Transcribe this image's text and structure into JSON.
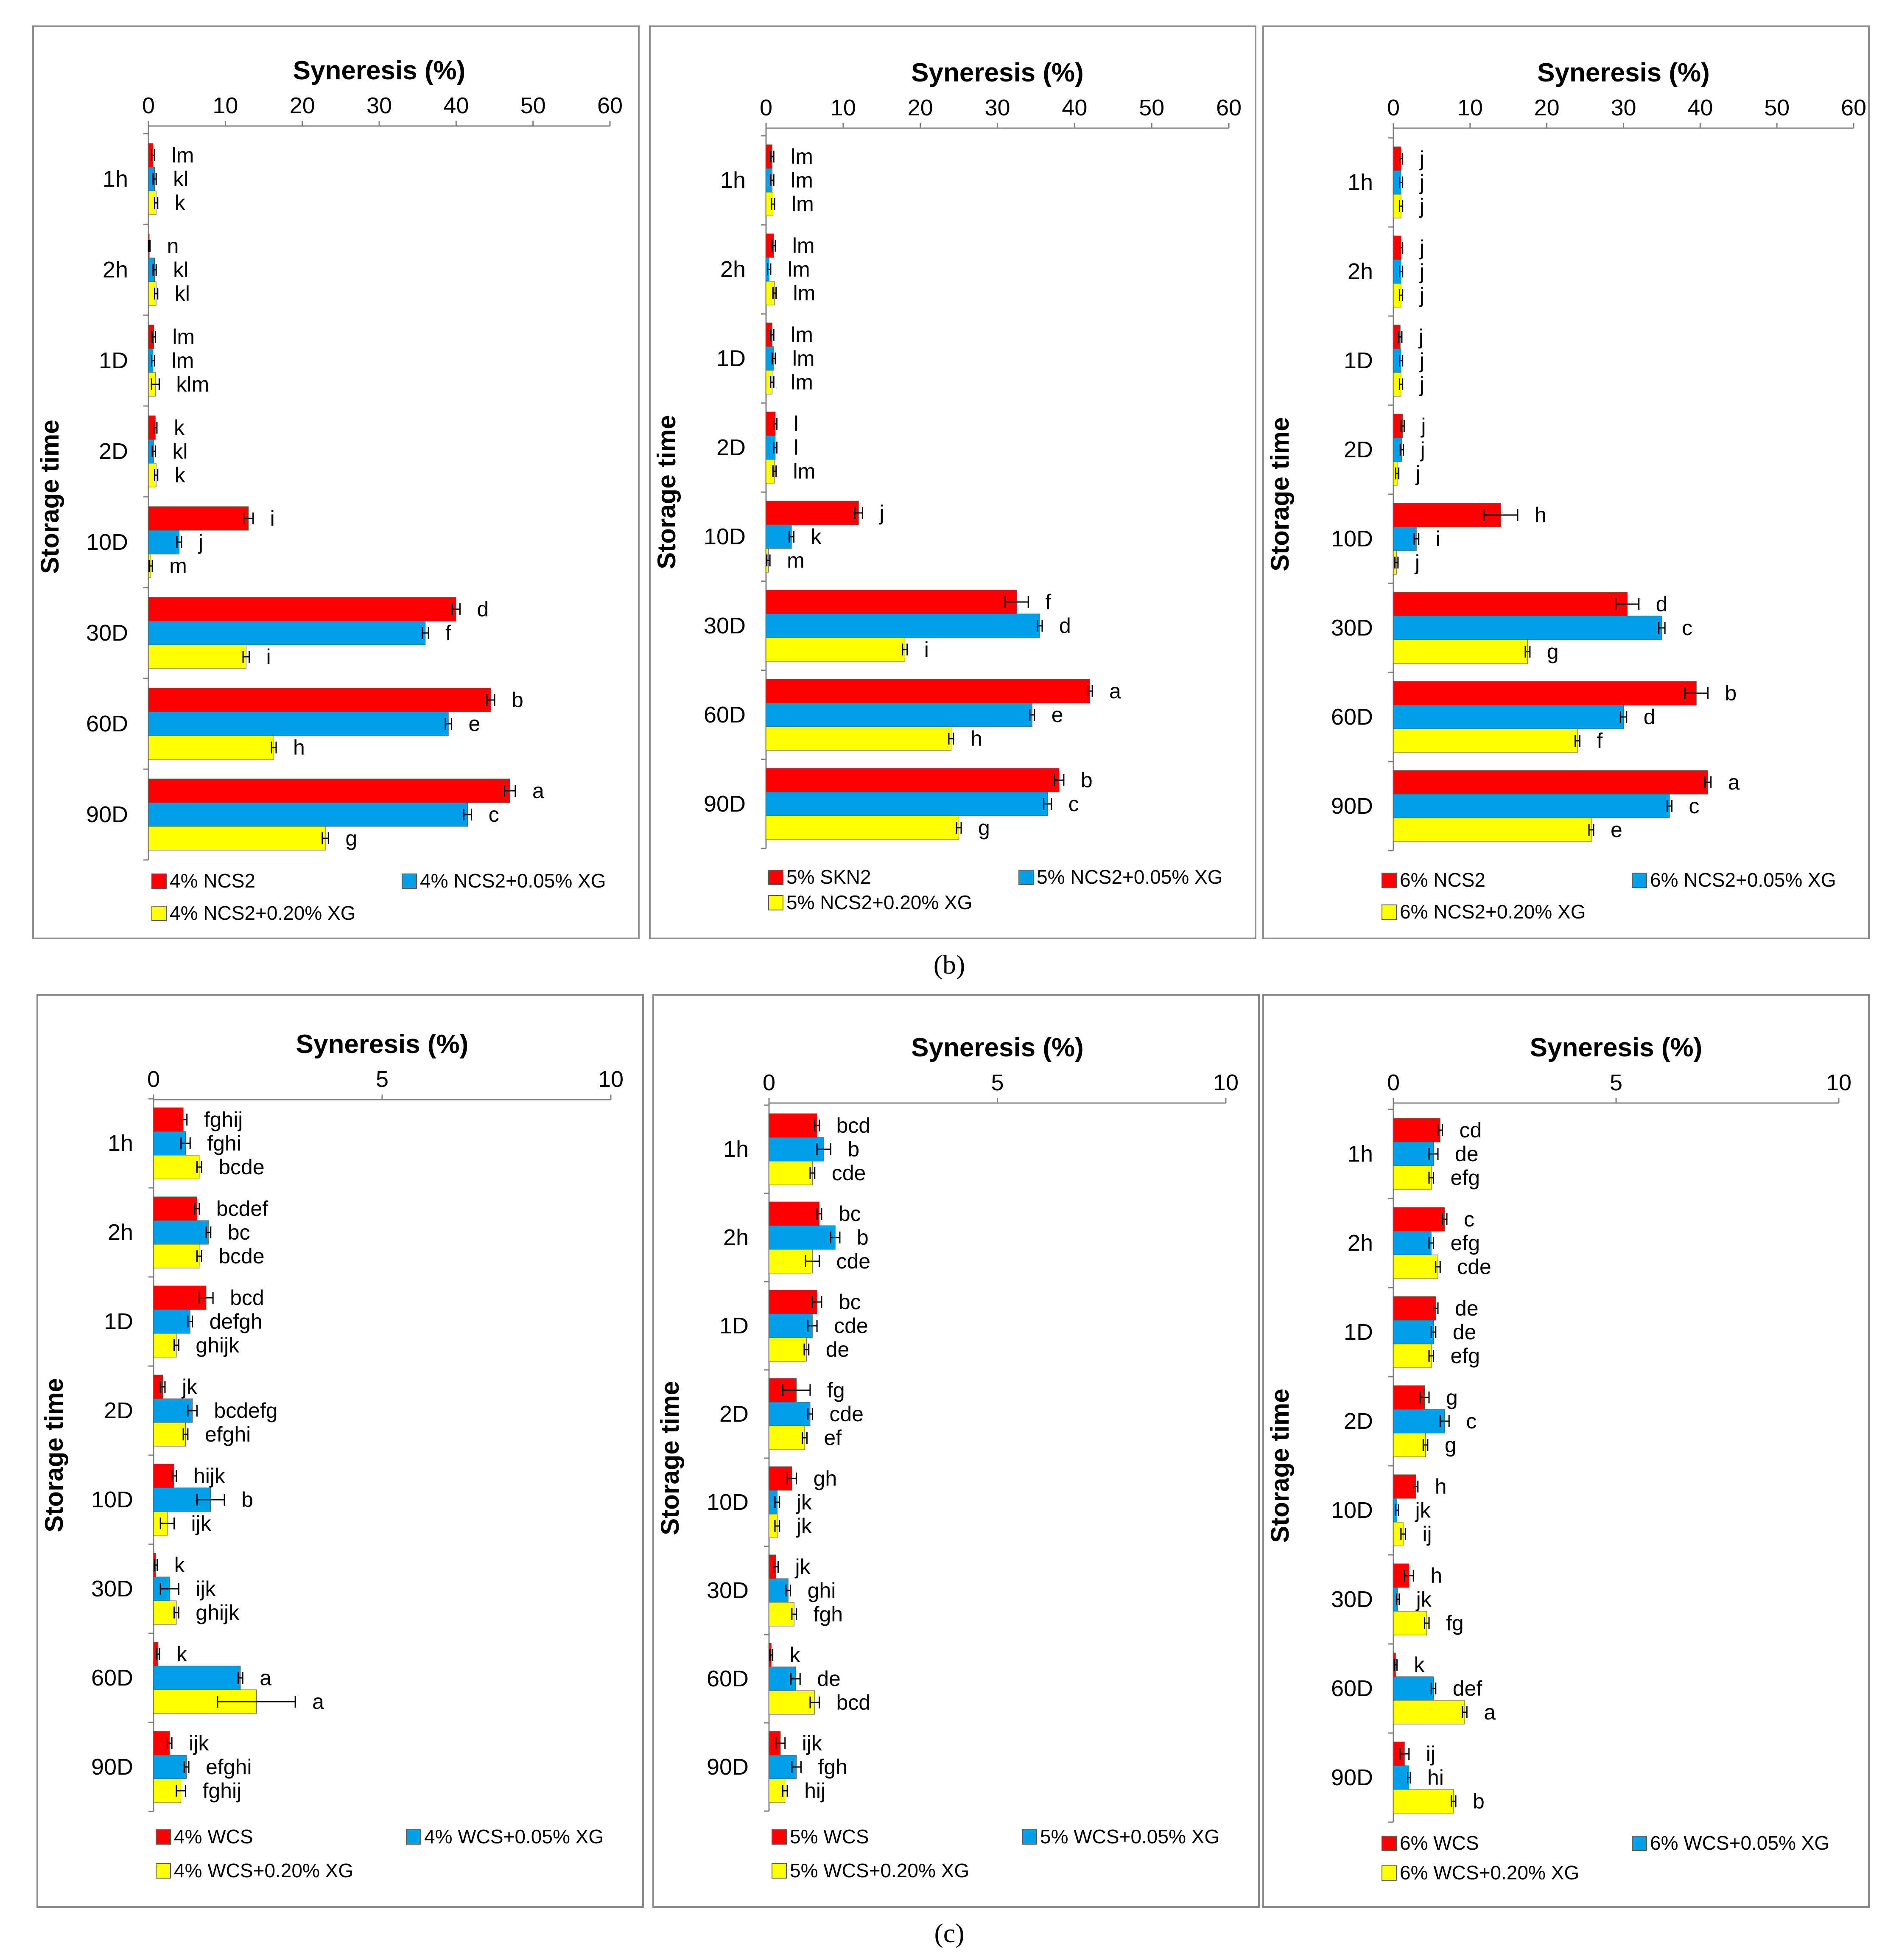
{
  "captions": [
    "(b)",
    "(c)"
  ],
  "chart_data": [
    {
      "type": "bar",
      "orientation": "horizontal",
      "grid": false,
      "legend_placement": "bottom",
      "title": "Syneresis (%)",
      "ylabel": "Storage time",
      "xlim": [
        0,
        60
      ],
      "ticks": [
        "0",
        "10",
        "20",
        "30",
        "40",
        "50",
        "60"
      ],
      "categories": [
        "1h",
        "2h",
        "1D",
        "2D",
        "10D",
        "30D",
        "60D",
        "90D"
      ],
      "series": [
        {
          "name": "4% NCS2",
          "color": "#ff0000",
          "values": [
            0.6,
            0.1,
            0.7,
            0.9,
            13,
            40,
            44.5,
            47
          ],
          "errors": [
            0.2,
            0.1,
            0.2,
            0.2,
            0.6,
            0.5,
            0.5,
            0.7
          ],
          "letters": [
            "lm",
            "n",
            "lm",
            "k",
            "i",
            "d",
            "b",
            "a"
          ]
        },
        {
          "name": "4% NCS2+0.05% XG",
          "color": "#00a0ea",
          "values": [
            0.8,
            0.8,
            0.6,
            0.7,
            4,
            36,
            39,
            41.5
          ],
          "errors": [
            0.2,
            0.2,
            0.2,
            0.2,
            0.3,
            0.4,
            0.4,
            0.5
          ],
          "letters": [
            "kl",
            "kl",
            "lm",
            "kl",
            "j",
            "f",
            "e",
            "c"
          ]
        },
        {
          "name": "4% NCS2+0.20% XG",
          "color": "#ffff00",
          "values": [
            1,
            1,
            0.9,
            1,
            0.3,
            12.7,
            16.3,
            23
          ],
          "errors": [
            0.2,
            0.2,
            0.5,
            0.2,
            0.2,
            0.4,
            0.3,
            0.4
          ],
          "letters": [
            "k",
            "kl",
            "klm",
            "k",
            "m",
            "i",
            "h",
            "g"
          ]
        }
      ]
    },
    {
      "type": "bar",
      "orientation": "horizontal",
      "grid": false,
      "legend_placement": "bottom",
      "title": "Syneresis (%)",
      "ylabel": "Storage time",
      "xlim": [
        0,
        60
      ],
      "ticks": [
        "0",
        "10",
        "20",
        "30",
        "40",
        "50",
        "60"
      ],
      "categories": [
        "1h",
        "2h",
        "1D",
        "2D",
        "10D",
        "30D",
        "60D",
        "90D"
      ],
      "series": [
        {
          "name": "5% SKN2",
          "color": "#ff0000",
          "values": [
            0.8,
            1,
            0.8,
            1.2,
            12,
            32.5,
            42,
            38
          ],
          "errors": [
            0.2,
            0.2,
            0.2,
            0.2,
            0.5,
            1.5,
            0.3,
            0.6
          ],
          "letters": [
            "lm",
            "lm",
            "lm",
            "l",
            "j",
            "f",
            "a",
            "b"
          ]
        },
        {
          "name": "5% NCS2+0.05% XG",
          "color": "#00a0ea",
          "values": [
            0.8,
            0.4,
            1,
            1.2,
            3.3,
            35.5,
            34.5,
            36.5
          ],
          "errors": [
            0.2,
            0.2,
            0.2,
            0.2,
            0.3,
            0.3,
            0.3,
            0.5
          ],
          "letters": [
            "lm",
            "lm",
            "lm",
            "l",
            "k",
            "d",
            "e",
            "c"
          ]
        },
        {
          "name": "5% NCS2+0.20% XG",
          "color": "#ffff00",
          "values": [
            0.9,
            1.1,
            0.8,
            1.1,
            0.3,
            18,
            24,
            25
          ],
          "errors": [
            0.2,
            0.2,
            0.2,
            0.2,
            0.2,
            0.3,
            0.3,
            0.3
          ],
          "letters": [
            "lm",
            "lm",
            "lm",
            "lm",
            "m",
            "i",
            "h",
            "g"
          ]
        }
      ]
    },
    {
      "type": "bar",
      "orientation": "horizontal",
      "grid": false,
      "legend_placement": "bottom",
      "title": "Syneresis (%)",
      "ylabel": "Storage time",
      "xlim": [
        0,
        60
      ],
      "ticks": [
        "0",
        "10",
        "20",
        "30",
        "40",
        "50",
        "60"
      ],
      "categories": [
        "1h",
        "2h",
        "1D",
        "2D",
        "10D",
        "30D",
        "60D",
        "90D"
      ],
      "series": [
        {
          "name": "6% NCS2",
          "color": "#ff0000",
          "values": [
            1,
            1,
            0.9,
            1.2,
            14,
            30.5,
            39.5,
            41
          ],
          "errors": [
            0.2,
            0.2,
            0.2,
            0.2,
            2.2,
            1.5,
            1.5,
            0.4
          ],
          "letters": [
            "j",
            "j",
            "j",
            "j",
            "h",
            "d",
            "b",
            "a"
          ]
        },
        {
          "name": "6% NCS2+0.05% XG",
          "color": "#00a0ea",
          "values": [
            1,
            1,
            1,
            1.1,
            3,
            35,
            30,
            36
          ],
          "errors": [
            0.2,
            0.2,
            0.2,
            0.2,
            0.3,
            0.4,
            0.4,
            0.3
          ],
          "letters": [
            "j",
            "j",
            "j",
            "j",
            "i",
            "c",
            "d",
            "c"
          ]
        },
        {
          "name": "6% NCS2+0.20% XG",
          "color": "#ffff00",
          "values": [
            1,
            1,
            1,
            0.5,
            0.4,
            17.5,
            24,
            25.8
          ],
          "errors": [
            0.2,
            0.2,
            0.2,
            0.2,
            0.2,
            0.3,
            0.3,
            0.3
          ],
          "letters": [
            "j",
            "j",
            "j",
            "j",
            "j",
            "g",
            "f",
            "e"
          ]
        }
      ]
    },
    {
      "type": "bar",
      "orientation": "horizontal",
      "grid": false,
      "legend_placement": "bottom",
      "title": "Syneresis (%)",
      "ylabel": "Storage time",
      "xlim": [
        0,
        10
      ],
      "ticks": [
        "0",
        "5",
        "10"
      ],
      "categories": [
        "1h",
        "2h",
        "1D",
        "2D",
        "10D",
        "30D",
        "60D",
        "90D"
      ],
      "series": [
        {
          "name": "4% WCS",
          "color": "#ff0000",
          "values": [
            0.65,
            0.95,
            1.15,
            0.2,
            0.45,
            0.05,
            0.1,
            0.35
          ],
          "errors": [
            0.08,
            0.05,
            0.15,
            0.05,
            0.05,
            0.03,
            0.03,
            0.05
          ],
          "letters": [
            "fghij",
            "bcdef",
            "bcd",
            "jk",
            "hijk",
            "k",
            "k",
            "ijk"
          ]
        },
        {
          "name": "4% WCS+0.05% XG",
          "color": "#00a0ea",
          "values": [
            0.7,
            1.2,
            0.8,
            0.85,
            1.25,
            0.35,
            1.9,
            0.72
          ],
          "errors": [
            0.1,
            0.05,
            0.05,
            0.1,
            0.3,
            0.2,
            0.05,
            0.05
          ],
          "letters": [
            "fghi",
            "bc",
            "defgh",
            "bcdefg",
            "b",
            "ijk",
            "a",
            "efghi"
          ]
        },
        {
          "name": "4% WCS+0.20% XG",
          "color": "#ffff00",
          "values": [
            1,
            1,
            0.5,
            0.7,
            0.3,
            0.5,
            2.25,
            0.6
          ],
          "errors": [
            0.05,
            0.05,
            0.05,
            0.05,
            0.15,
            0.05,
            0.85,
            0.1
          ],
          "letters": [
            "bcde",
            "bcde",
            "ghijk",
            "efghi",
            "ijk",
            "ghijk",
            "a",
            "fghij"
          ]
        }
      ]
    },
    {
      "type": "bar",
      "orientation": "horizontal",
      "grid": false,
      "legend_placement": "bottom",
      "title": "Syneresis (%)",
      "ylabel": "Storage time",
      "xlim": [
        0,
        10
      ],
      "ticks": [
        "0",
        "5",
        "10"
      ],
      "categories": [
        "1h",
        "2h",
        "1D",
        "2D",
        "10D",
        "30D",
        "60D",
        "90D"
      ],
      "series": [
        {
          "name": "5% WCS",
          "color": "#ff0000",
          "values": [
            1.05,
            1.1,
            1.05,
            0.6,
            0.5,
            0.15,
            0.05,
            0.25
          ],
          "errors": [
            0.05,
            0.05,
            0.1,
            0.3,
            0.1,
            0.05,
            0.03,
            0.1
          ],
          "letters": [
            "bcd",
            "bc",
            "bc",
            "fg",
            "gh",
            "jk",
            "k",
            "ijk"
          ]
        },
        {
          "name": "5% WCS+0.05% XG",
          "color": "#00a0ea",
          "values": [
            1.2,
            1.45,
            0.95,
            0.9,
            0.18,
            0.42,
            0.58,
            0.6
          ],
          "errors": [
            0.15,
            0.1,
            0.1,
            0.05,
            0.05,
            0.05,
            0.1,
            0.1
          ],
          "letters": [
            "b",
            "b",
            "cde",
            "cde",
            "jk",
            "ghi",
            "de",
            "fgh"
          ]
        },
        {
          "name": "5% WCS+0.20% XG",
          "color": "#ffff00",
          "values": [
            0.95,
            0.95,
            0.82,
            0.78,
            0.18,
            0.55,
            1,
            0.35
          ],
          "errors": [
            0.05,
            0.15,
            0.05,
            0.05,
            0.05,
            0.05,
            0.1,
            0.05
          ],
          "letters": [
            "cde",
            "cde",
            "de",
            "ef",
            "jk",
            "fgh",
            "bcd",
            "hij"
          ]
        }
      ]
    },
    {
      "type": "bar",
      "orientation": "horizontal",
      "grid": false,
      "legend_placement": "bottom",
      "title": "Syneresis (%)",
      "ylabel": "Storage time",
      "xlim": [
        0,
        10
      ],
      "ticks": [
        "0",
        "5",
        "10"
      ],
      "categories": [
        "1h",
        "2h",
        "1D",
        "2D",
        "10D",
        "30D",
        "60D",
        "90D"
      ],
      "series": [
        {
          "name": "6% WCS",
          "color": "#ff0000",
          "values": [
            1.05,
            1.15,
            0.95,
            0.7,
            0.5,
            0.35,
            0.05,
            0.25
          ],
          "errors": [
            0.05,
            0.05,
            0.05,
            0.1,
            0.05,
            0.1,
            0.03,
            0.1
          ],
          "letters": [
            "cd",
            "c",
            "de",
            "g",
            "h",
            "h",
            "k",
            "ij"
          ]
        },
        {
          "name": "6% WCS+0.05% XG",
          "color": "#00a0ea",
          "values": [
            0.9,
            0.85,
            0.9,
            1.15,
            0.08,
            0.1,
            0.9,
            0.35
          ],
          "errors": [
            0.1,
            0.05,
            0.05,
            0.1,
            0.03,
            0.03,
            0.05,
            0.03
          ],
          "letters": [
            "de",
            "efg",
            "de",
            "c",
            "jk",
            "jk",
            "def",
            "hi"
          ]
        },
        {
          "name": "6% WCS+0.20% XG",
          "color": "#ffff00",
          "values": [
            0.85,
            1,
            0.85,
            0.72,
            0.22,
            0.75,
            1.6,
            1.35
          ],
          "errors": [
            0.05,
            0.05,
            0.05,
            0.05,
            0.05,
            0.05,
            0.05,
            0.05
          ],
          "letters": [
            "efg",
            "cde",
            "efg",
            "g",
            "ij",
            "fg",
            "a",
            "b"
          ]
        }
      ]
    }
  ]
}
